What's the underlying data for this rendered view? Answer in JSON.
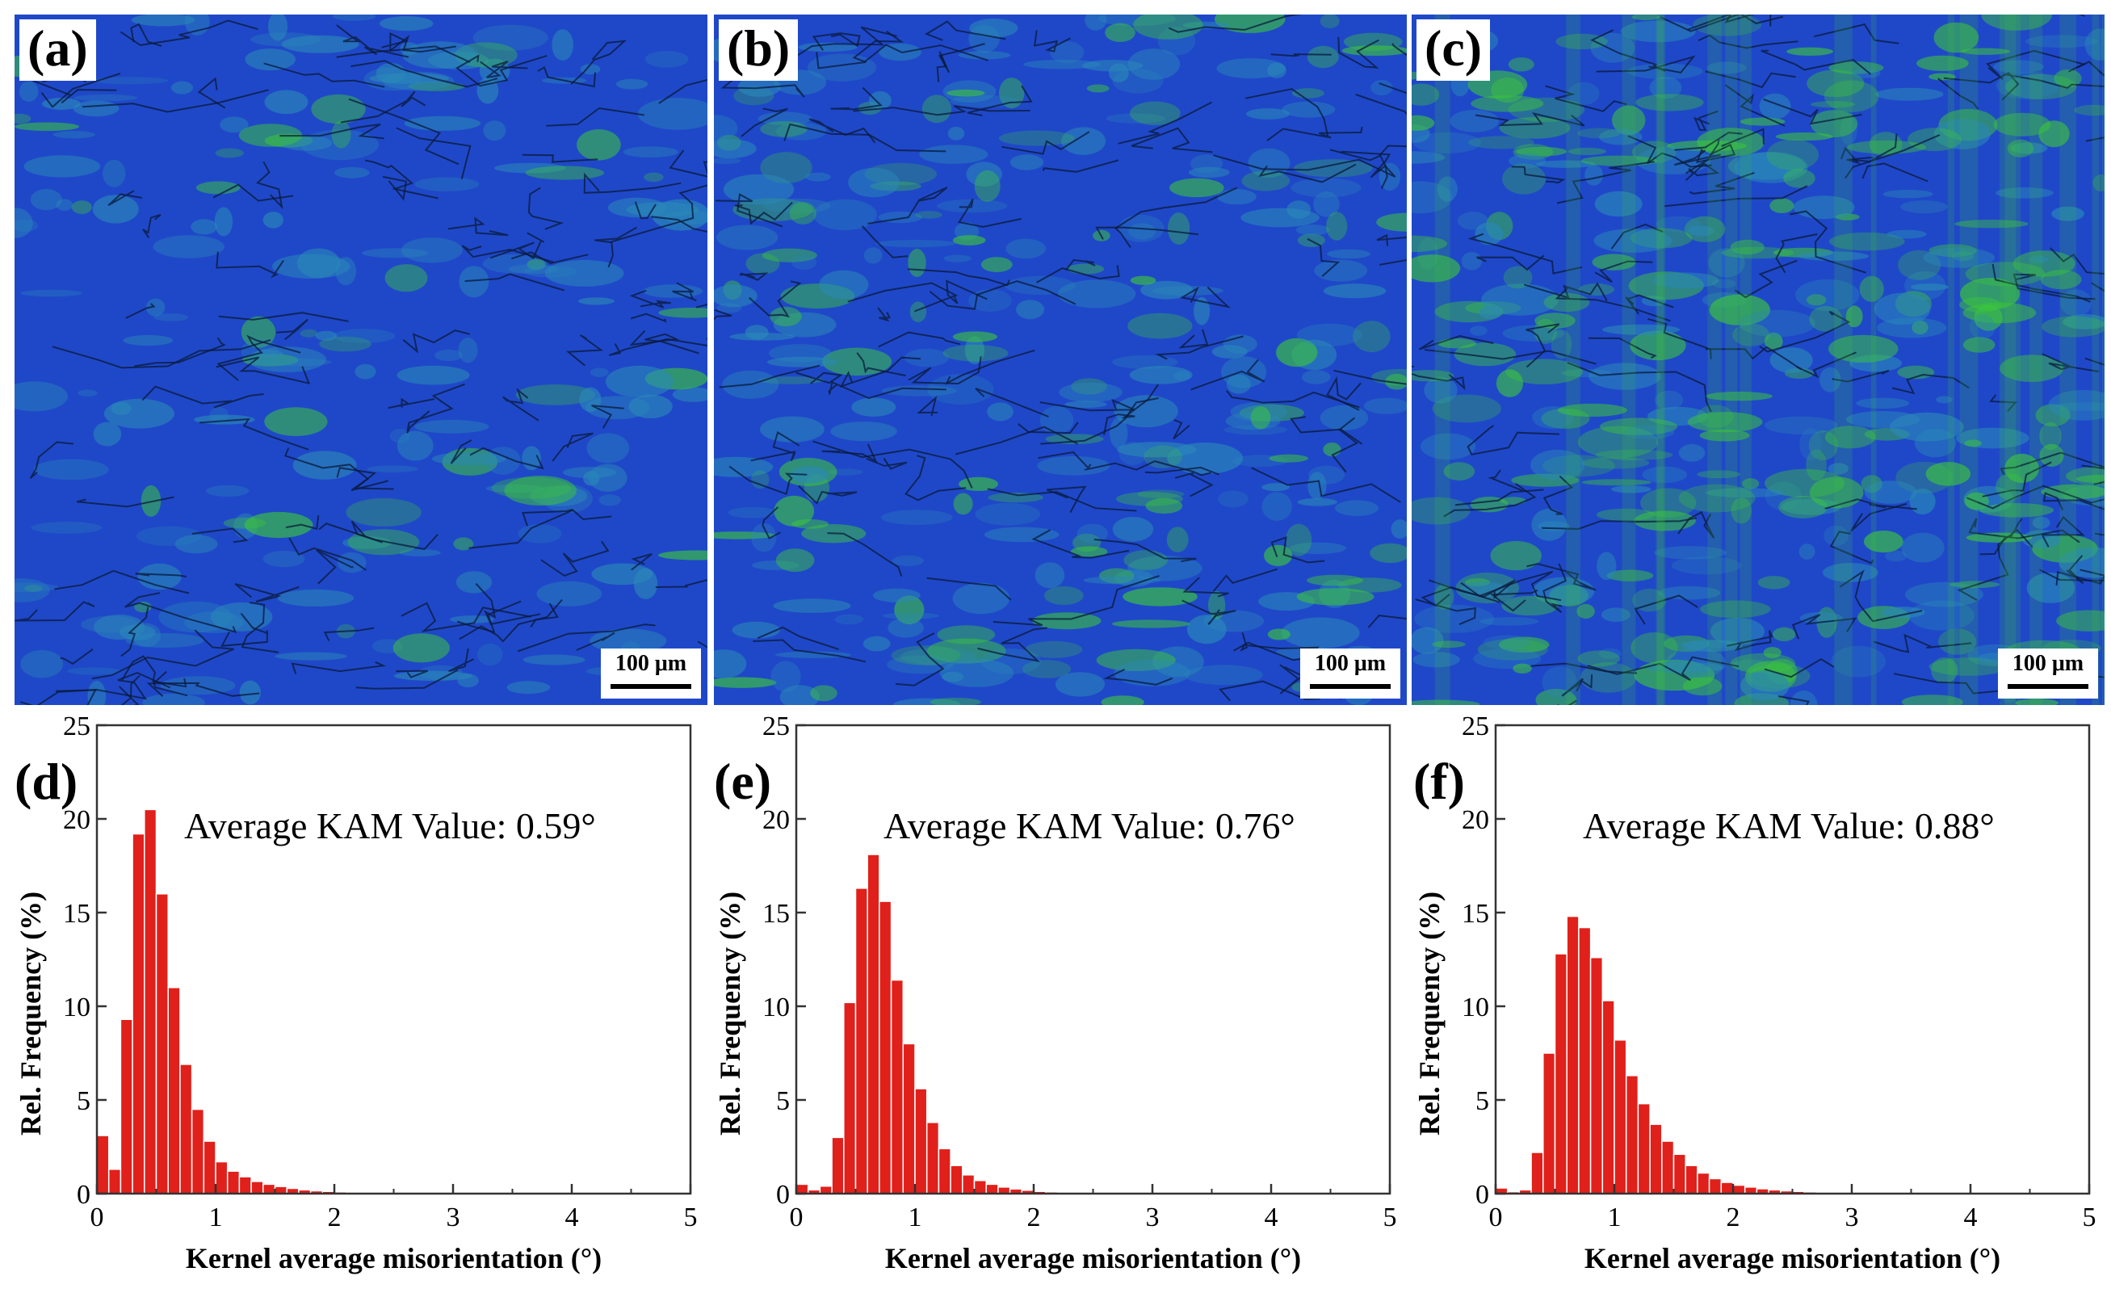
{
  "maps": [
    {
      "label": "(a)",
      "scale_text": "100 μm"
    },
    {
      "label": "(b)",
      "scale_text": "100 μm"
    },
    {
      "label": "(c)",
      "scale_text": "100 μm"
    }
  ],
  "colors": {
    "kam_low": "#1f48c8",
    "kam_high": "#3cc43c",
    "bar": "#e0201a",
    "boundary": "#0a1a3a"
  },
  "chart_data": [
    {
      "type": "bar",
      "panel": "(d)",
      "annotation": "Average KAM Value: 0.59°",
      "xlabel": "Kernel average misorientation (°)",
      "ylabel": "Rel.  Frequency (%)",
      "xlim": [
        0,
        5
      ],
      "ylim": [
        0,
        25
      ],
      "xticks": [
        "0",
        "1",
        "2",
        "3",
        "4",
        "5"
      ],
      "yticks": [
        "0",
        "5",
        "10",
        "15",
        "20",
        "25"
      ],
      "bin_width": 0.1,
      "x": [
        0.05,
        0.15,
        0.25,
        0.35,
        0.45,
        0.55,
        0.65,
        0.75,
        0.85,
        0.95,
        1.05,
        1.15,
        1.25,
        1.35,
        1.45,
        1.55,
        1.65,
        1.75,
        1.85,
        1.95,
        2.05,
        2.15,
        2.25,
        2.35,
        2.45
      ],
      "values": [
        3.1,
        1.3,
        9.3,
        19.2,
        20.5,
        16.0,
        11.0,
        6.9,
        4.5,
        2.8,
        1.7,
        1.2,
        0.9,
        0.65,
        0.5,
        0.38,
        0.28,
        0.2,
        0.15,
        0.12,
        0.09,
        0.07,
        0.05,
        0.04,
        0.03
      ]
    },
    {
      "type": "bar",
      "panel": "(e)",
      "annotation": "Average KAM Value: 0.76°",
      "xlabel": "Kernel average misorientation (°)",
      "ylabel": "Rel.  Frequency (%)",
      "xlim": [
        0,
        5
      ],
      "ylim": [
        0,
        25
      ],
      "xticks": [
        "0",
        "1",
        "2",
        "3",
        "4",
        "5"
      ],
      "yticks": [
        "0",
        "5",
        "10",
        "15",
        "20",
        "25"
      ],
      "bin_width": 0.1,
      "x": [
        0.05,
        0.15,
        0.25,
        0.35,
        0.45,
        0.55,
        0.65,
        0.75,
        0.85,
        0.95,
        1.05,
        1.15,
        1.25,
        1.35,
        1.45,
        1.55,
        1.65,
        1.75,
        1.85,
        1.95,
        2.05,
        2.15,
        2.25,
        2.35,
        2.45
      ],
      "values": [
        0.5,
        0.2,
        0.4,
        3.0,
        10.2,
        16.3,
        18.1,
        15.6,
        11.4,
        8.0,
        5.6,
        3.8,
        2.4,
        1.5,
        1.0,
        0.7,
        0.5,
        0.35,
        0.25,
        0.18,
        0.12,
        0.09,
        0.06,
        0.04,
        0.03
      ]
    },
    {
      "type": "bar",
      "panel": "(f)",
      "annotation": "Average KAM Value: 0.88°",
      "xlabel": "Kernel average misorientation (°)",
      "ylabel": "Rel.  Frequency (%)",
      "xlim": [
        0,
        5
      ],
      "ylim": [
        0,
        25
      ],
      "xticks": [
        "0",
        "1",
        "2",
        "3",
        "4",
        "5"
      ],
      "yticks": [
        "0",
        "5",
        "10",
        "15",
        "20",
        "25"
      ],
      "bin_width": 0.1,
      "x": [
        0.05,
        0.15,
        0.25,
        0.35,
        0.45,
        0.55,
        0.65,
        0.75,
        0.85,
        0.95,
        1.05,
        1.15,
        1.25,
        1.35,
        1.45,
        1.55,
        1.65,
        1.75,
        1.85,
        1.95,
        2.05,
        2.15,
        2.25,
        2.35,
        2.45,
        2.55,
        2.65,
        2.75,
        2.85,
        2.95
      ],
      "values": [
        0.3,
        0.1,
        0.2,
        2.2,
        7.5,
        12.8,
        14.8,
        14.2,
        12.6,
        10.3,
        8.2,
        6.3,
        4.8,
        3.7,
        2.8,
        2.1,
        1.5,
        1.1,
        0.8,
        0.6,
        0.45,
        0.35,
        0.26,
        0.2,
        0.15,
        0.12,
        0.09,
        0.07,
        0.05,
        0.04
      ]
    }
  ]
}
